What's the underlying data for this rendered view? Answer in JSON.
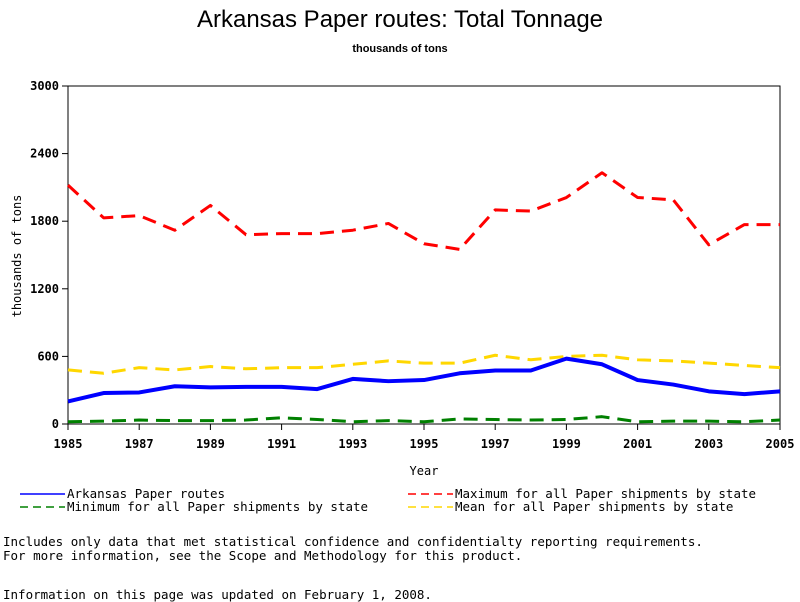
{
  "chart_data": {
    "type": "line",
    "title": "Arkansas Paper routes: Total Tonnage",
    "subtitle": "thousands of tons",
    "xlabel": "Year",
    "ylabel": "thousands of tons",
    "xlim": [
      1985,
      2005
    ],
    "ylim": [
      0,
      3000
    ],
    "x_ticks": [
      1985,
      1987,
      1989,
      1991,
      1993,
      1995,
      1997,
      1999,
      2001,
      2003,
      2005
    ],
    "y_ticks": [
      0,
      600,
      1200,
      1800,
      2400,
      3000
    ],
    "grid": false,
    "x": [
      1985,
      1986,
      1987,
      1988,
      1989,
      1990,
      1991,
      1992,
      1993,
      1994,
      1995,
      1996,
      1997,
      1998,
      1999,
      2000,
      2001,
      2002,
      2003,
      2004,
      2005
    ],
    "series": [
      {
        "name": "Arkansas Paper routes",
        "color": "#0000ff",
        "style": "solid",
        "values": [
          200,
          275,
          280,
          335,
          325,
          330,
          330,
          310,
          400,
          380,
          390,
          450,
          475,
          475,
          580,
          530,
          390,
          350,
          290,
          265,
          290
        ]
      },
      {
        "name": "Maximum for all Paper shipments by state",
        "color": "#ff0000",
        "style": "dashed",
        "values": [
          2120,
          1830,
          1850,
          1720,
          1940,
          1680,
          1690,
          1690,
          1720,
          1780,
          1600,
          1550,
          1900,
          1890,
          2010,
          2230,
          2010,
          1990,
          1590,
          1770,
          1770
        ]
      },
      {
        "name": "Minimum for all Paper shipments by state",
        "color": "#008000",
        "style": "dashed",
        "values": [
          20,
          25,
          35,
          30,
          30,
          35,
          55,
          40,
          20,
          30,
          20,
          45,
          40,
          35,
          40,
          65,
          20,
          25,
          25,
          20,
          35
        ]
      },
      {
        "name": "Mean for all Paper shipments by state",
        "color": "#ffd700",
        "style": "dashed",
        "values": [
          480,
          450,
          500,
          480,
          510,
          490,
          500,
          500,
          530,
          560,
          540,
          540,
          610,
          570,
          600,
          610,
          570,
          560,
          540,
          520,
          500
        ]
      }
    ],
    "legend_position": "bottom"
  },
  "notes": [
    "Includes only data that met statistical confidence and confidentialty reporting requirements.",
    "For more information, see the Scope and Methodology for this product."
  ],
  "updated": "Information on this page was updated on February 1, 2008."
}
